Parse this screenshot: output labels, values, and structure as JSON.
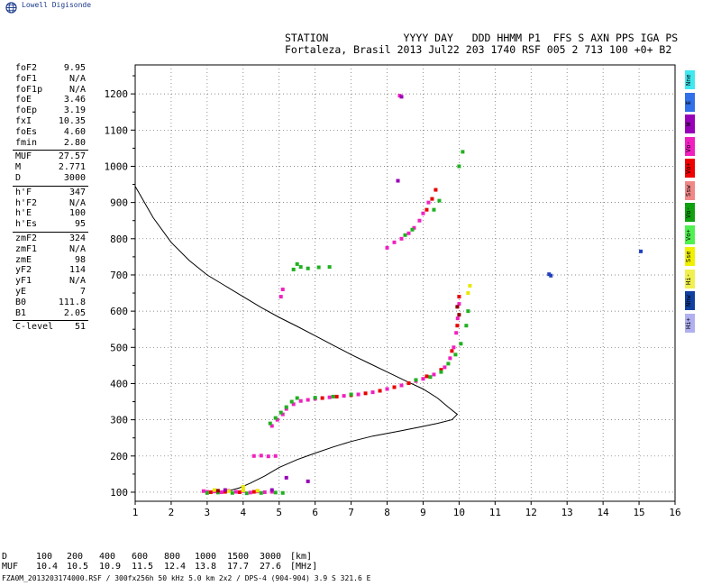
{
  "brand": {
    "name": "Lowell Digisonde",
    "logo_icon": "globe-icon"
  },
  "header": {
    "line1": "STATION            YYYY DAY   DDD HHMM P1  FFS S AXN PPS IGA PS",
    "line2": "Fortaleza, Brasil 2013 Jul22 203 1740 RSF 005 2 713 100 +0+ B2"
  },
  "params": [
    {
      "label": "foF2",
      "value": "9.95"
    },
    {
      "label": "foF1",
      "value": "N/A"
    },
    {
      "label": "foF1p",
      "value": "N/A"
    },
    {
      "label": "foE",
      "value": "3.46"
    },
    {
      "label": "foEp",
      "value": "3.19"
    },
    {
      "label": "fxI",
      "value": "10.35"
    },
    {
      "label": "foEs",
      "value": "4.60"
    },
    {
      "label": "fmin",
      "value": "2.80"
    },
    {
      "label": "MUF",
      "value": "27.57",
      "sep": true
    },
    {
      "label": "M",
      "value": "2.771"
    },
    {
      "label": "D",
      "value": "3000"
    },
    {
      "label": "h'F",
      "value": "347",
      "sep": true
    },
    {
      "label": "h'F2",
      "value": "N/A"
    },
    {
      "label": "h'E",
      "value": "100"
    },
    {
      "label": "h'Es",
      "value": "95"
    },
    {
      "label": "zmF2",
      "value": "324",
      "sep": true
    },
    {
      "label": "zmF1",
      "value": "N/A"
    },
    {
      "label": "zmE",
      "value": "98"
    },
    {
      "label": "yF2",
      "value": "114"
    },
    {
      "label": "yF1",
      "value": "N/A"
    },
    {
      "label": "yE",
      "value": "7"
    },
    {
      "label": "B0",
      "value": "111.8"
    },
    {
      "label": "B1",
      "value": "2.05"
    },
    {
      "label": "C-level",
      "value": "51",
      "sep": true
    }
  ],
  "legend": [
    {
      "label": "Nne",
      "color": "#40e8f0"
    },
    {
      "label": "E",
      "color": "#3070e8"
    },
    {
      "label": "W",
      "color": "#9800b8"
    },
    {
      "label": "Vo-",
      "color": "#f020c0"
    },
    {
      "label": "Vo+",
      "color": "#f00000"
    },
    {
      "label": "Ssw",
      "color": "#f08888"
    },
    {
      "label": "Vo-",
      "color": "#10a010"
    },
    {
      "label": "Vo+",
      "color": "#50f050"
    },
    {
      "label": "Sse",
      "color": "#f0f000"
    },
    {
      "label": "Hi-",
      "color": "#f0f050"
    },
    {
      "label": "Nnw",
      "color": "#1040a0"
    },
    {
      "label": "Hi+",
      "color": "#b0b0f0"
    }
  ],
  "footer": {
    "d_label": "D",
    "muf_label": "MUF",
    "d_values": [
      "100",
      "200",
      "400",
      "600",
      "800",
      "1000",
      "1500",
      "3000",
      "[km]"
    ],
    "muf_values": [
      "10.4",
      "10.5",
      "10.9",
      "11.5",
      "12.4",
      "13.8",
      "17.7",
      "27.6",
      "[MHz]"
    ],
    "fileinfo": "FZA0M_2013203174000.RSF / 300fx256h 50 kHz 5.0 km 2x2 / DPS-4 (904-904)   3.9 S 321.6 E"
  },
  "chart_data": {
    "type": "scatter",
    "title": "",
    "xlabel": "",
    "ylabel": "",
    "xlim": [
      1,
      16
    ],
    "ylim": [
      75,
      1280
    ],
    "xticks": [
      "1",
      "2",
      "3",
      "4",
      "5",
      "6",
      "7",
      "8",
      "9",
      "10",
      "11",
      "12",
      "13",
      "14",
      "15",
      "16"
    ],
    "yticks": [
      "100",
      "200",
      "300",
      "400",
      "500",
      "600",
      "700",
      "800",
      "900",
      "1000",
      "1100",
      "1200"
    ],
    "grid": true,
    "colors": {
      "pink": "#f020c0",
      "red": "#e80000",
      "green": "#20b020",
      "lightgreen": "#60e060",
      "yellow": "#e8e800",
      "purple": "#9800b8",
      "darkred": "#900000",
      "blue": "#2040c0",
      "black": "#000000"
    },
    "series": [
      {
        "color_key": "pink",
        "points": [
          [
            2.9,
            103
          ],
          [
            3.0,
            101
          ],
          [
            3.2,
            102
          ],
          [
            3.4,
            100
          ],
          [
            3.6,
            104
          ],
          [
            3.8,
            101
          ],
          [
            4.0,
            103
          ],
          [
            4.2,
            99
          ],
          [
            4.4,
            102
          ],
          [
            4.6,
            100
          ],
          [
            4.8,
            101
          ],
          [
            4.3,
            200
          ],
          [
            4.5,
            201
          ],
          [
            4.7,
            199
          ],
          [
            4.9,
            200
          ],
          [
            4.8,
            283
          ],
          [
            4.95,
            300
          ],
          [
            5.1,
            315
          ],
          [
            5.2,
            330
          ],
          [
            5.4,
            343
          ],
          [
            5.6,
            352
          ],
          [
            5.8,
            355
          ],
          [
            6.0,
            358
          ],
          [
            6.4,
            362
          ],
          [
            6.8,
            366
          ],
          [
            7.2,
            370
          ],
          [
            7.6,
            376
          ],
          [
            8.0,
            385
          ],
          [
            8.4,
            395
          ],
          [
            8.8,
            407
          ],
          [
            9.0,
            413
          ],
          [
            9.3,
            425
          ],
          [
            9.6,
            445
          ],
          [
            9.75,
            470
          ],
          [
            9.85,
            500
          ],
          [
            9.92,
            540
          ],
          [
            9.96,
            580
          ],
          [
            10.0,
            620
          ],
          [
            5.05,
            640
          ],
          [
            5.1,
            660
          ],
          [
            8.0,
            775
          ],
          [
            8.2,
            790
          ],
          [
            8.4,
            800
          ],
          [
            8.6,
            815
          ],
          [
            8.75,
            830
          ],
          [
            8.9,
            850
          ],
          [
            9.0,
            870
          ],
          [
            9.15,
            900
          ],
          [
            8.35,
            1195
          ]
        ]
      },
      {
        "color_key": "red",
        "points": [
          [
            3.1,
            100
          ],
          [
            3.5,
            101
          ],
          [
            3.9,
            100
          ],
          [
            4.3,
            101
          ],
          [
            6.2,
            360
          ],
          [
            6.6,
            364
          ],
          [
            7.0,
            368
          ],
          [
            7.4,
            373
          ],
          [
            7.8,
            380
          ],
          [
            8.2,
            390
          ],
          [
            8.6,
            401
          ],
          [
            9.1,
            420
          ],
          [
            9.5,
            438
          ],
          [
            9.8,
            490
          ],
          [
            9.95,
            560
          ],
          [
            10.0,
            640
          ],
          [
            9.1,
            880
          ],
          [
            9.25,
            910
          ],
          [
            9.35,
            935
          ]
        ]
      },
      {
        "color_key": "green",
        "points": [
          [
            3.0,
            98
          ],
          [
            3.3,
            99
          ],
          [
            3.7,
            98
          ],
          [
            4.1,
            97
          ],
          [
            4.5,
            98
          ],
          [
            4.9,
            99
          ],
          [
            5.1,
            98
          ],
          [
            4.75,
            290
          ],
          [
            4.9,
            305
          ],
          [
            5.05,
            320
          ],
          [
            5.2,
            335
          ],
          [
            5.35,
            350
          ],
          [
            5.5,
            360
          ],
          [
            6.0,
            361
          ],
          [
            6.5,
            364
          ],
          [
            7.0,
            370
          ],
          [
            8.8,
            410
          ],
          [
            9.2,
            418
          ],
          [
            9.5,
            432
          ],
          [
            9.7,
            455
          ],
          [
            9.9,
            480
          ],
          [
            10.05,
            510
          ],
          [
            10.2,
            560
          ],
          [
            10.25,
            600
          ],
          [
            5.4,
            715
          ],
          [
            5.6,
            722
          ],
          [
            5.8,
            718
          ],
          [
            6.1,
            721
          ],
          [
            6.4,
            722
          ],
          [
            5.5,
            730
          ],
          [
            8.5,
            810
          ],
          [
            8.7,
            825
          ],
          [
            9.3,
            880
          ],
          [
            9.45,
            905
          ],
          [
            10.1,
            1040
          ],
          [
            10.0,
            1000
          ]
        ]
      },
      {
        "color_key": "yellow",
        "points": [
          [
            3.2,
            106
          ],
          [
            3.6,
            103
          ],
          [
            4.0,
            105
          ],
          [
            4.4,
            104
          ],
          [
            4.0,
            115
          ],
          [
            10.3,
            670
          ],
          [
            10.25,
            650
          ]
        ]
      },
      {
        "color_key": "purple",
        "points": [
          [
            3.5,
            106
          ],
          [
            4.8,
            106
          ],
          [
            5.2,
            140
          ],
          [
            5.8,
            130
          ],
          [
            8.3,
            960
          ],
          [
            8.4,
            1192
          ]
        ]
      },
      {
        "color_key": "darkred",
        "points": [
          [
            9.95,
            612
          ],
          [
            10.0,
            590
          ],
          [
            3.3,
            104
          ]
        ]
      },
      {
        "color_key": "blue",
        "points": [
          [
            12.5,
            702
          ],
          [
            12.55,
            698
          ],
          [
            15.05,
            765
          ]
        ]
      }
    ],
    "profile_curve": [
      [
        1.0,
        945
      ],
      [
        1.5,
        858
      ],
      [
        2.0,
        790
      ],
      [
        2.5,
        740
      ],
      [
        3.0,
        700
      ],
      [
        3.5,
        670
      ],
      [
        4.0,
        640
      ],
      [
        4.5,
        610
      ],
      [
        5.0,
        583
      ],
      [
        5.5,
        558
      ],
      [
        6.0,
        532
      ],
      [
        6.5,
        506
      ],
      [
        7.0,
        480
      ],
      [
        7.5,
        456
      ],
      [
        8.0,
        432
      ],
      [
        8.5,
        408
      ],
      [
        9.0,
        385
      ],
      [
        9.4,
        360
      ],
      [
        9.7,
        335
      ],
      [
        9.95,
        315
      ],
      [
        9.8,
        300
      ],
      [
        9.4,
        290
      ],
      [
        8.9,
        280
      ],
      [
        8.3,
        268
      ],
      [
        7.6,
        255
      ],
      [
        7.0,
        240
      ],
      [
        6.5,
        225
      ],
      [
        6.0,
        208
      ],
      [
        5.5,
        190
      ],
      [
        5.0,
        168
      ],
      [
        4.6,
        145
      ],
      [
        4.2,
        125
      ],
      [
        3.9,
        112
      ],
      [
        3.6,
        104
      ],
      [
        3.46,
        98
      ]
    ]
  }
}
